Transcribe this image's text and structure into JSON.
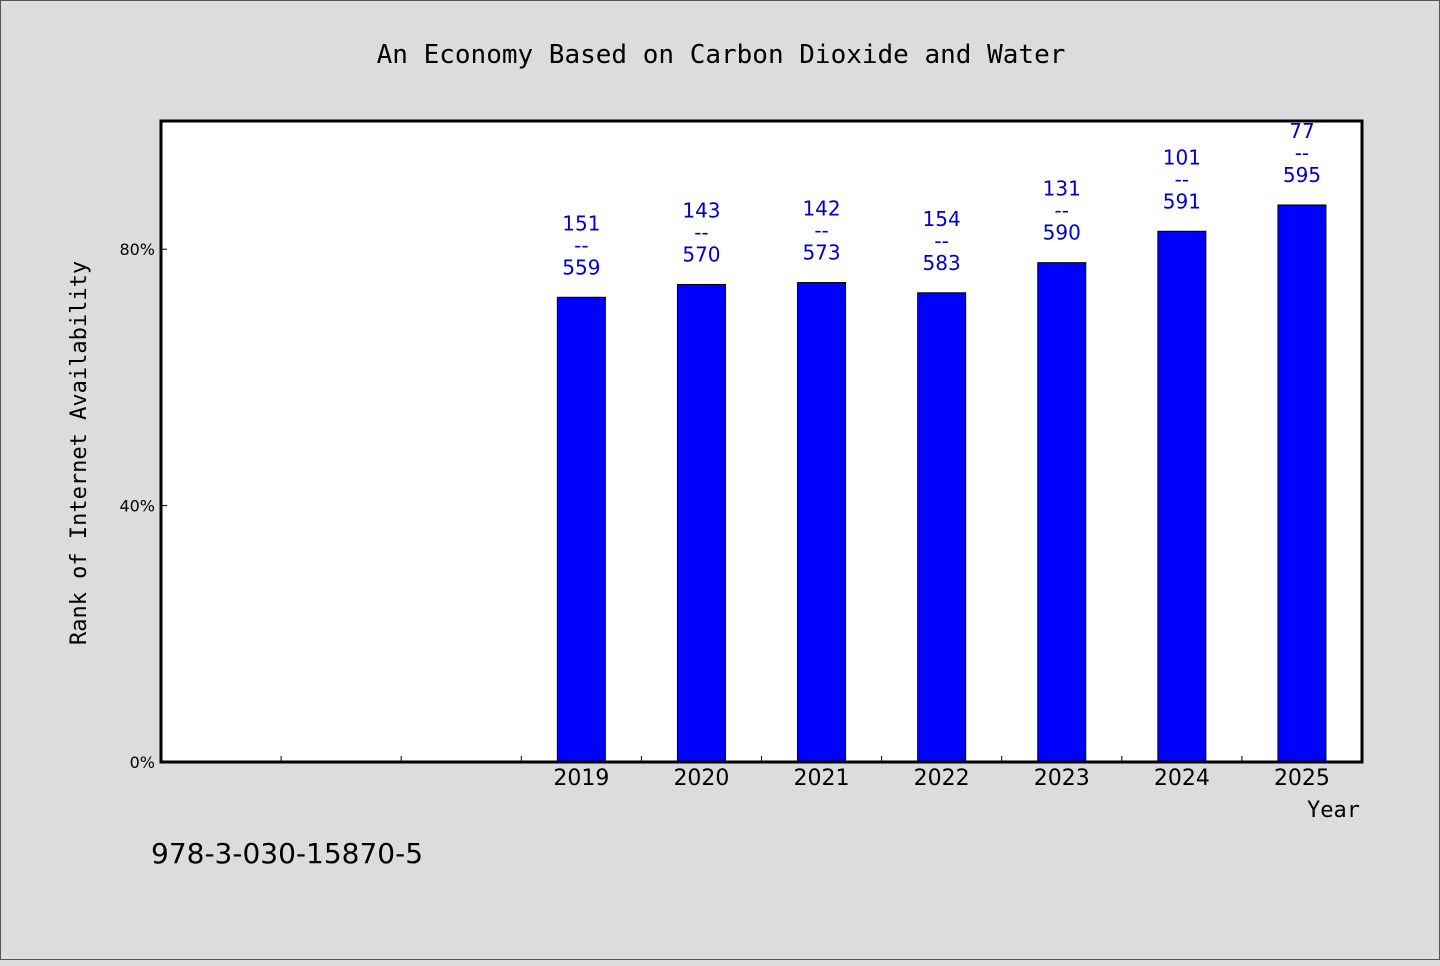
{
  "chart_data": {
    "type": "bar",
    "title": "An Economy Based on Carbon Dioxide and Water",
    "xlabel": "Year",
    "ylabel": "Rank of Internet Availability",
    "categories": [
      "",
      "",
      "",
      "2019",
      "2020",
      "2021",
      "2022",
      "2023",
      "2024",
      "2025"
    ],
    "values": [
      null,
      null,
      null,
      72.5,
      74.5,
      74.8,
      73.2,
      77.9,
      82.8,
      86.9
    ],
    "label_top": [
      null,
      null,
      null,
      "151",
      "143",
      "142",
      "154",
      "131",
      "101",
      "77"
    ],
    "label_sep": "--",
    "label_bottom": [
      null,
      null,
      null,
      "559",
      "570",
      "573",
      "583",
      "590",
      "591",
      "595"
    ],
    "ylim": [
      0,
      100
    ],
    "yticks": [
      0,
      40,
      80
    ],
    "ytick_labels": [
      "0%",
      "40%",
      "80%"
    ],
    "grid": false,
    "bar_color": "#0000ff",
    "label_color": "#0000cc",
    "background": "#dcdcdc",
    "plot_background": "#ffffff"
  },
  "footer": {
    "isbn": "978-3-030-15870-5"
  }
}
